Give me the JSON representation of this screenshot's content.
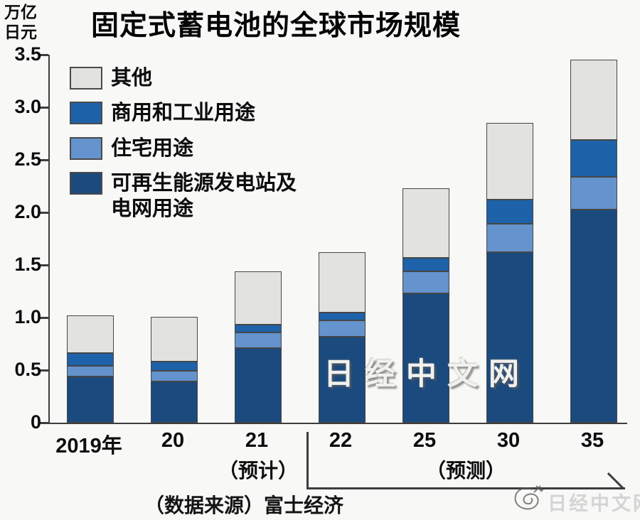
{
  "page_title": "固定式蓄电池的全球市场规模",
  "header": {
    "unit_line1": "万亿",
    "unit_line2": "日元",
    "title": "固定式蓄电池的全球市场规模"
  },
  "chart_data": {
    "type": "bar",
    "stacked": true,
    "title": "固定式蓄电池的全球市场规模",
    "ylabel": "万亿日元",
    "xlabel": "",
    "categories": [
      "2019年",
      "20",
      "21",
      "22",
      "25",
      "30",
      "35"
    ],
    "series": [
      {
        "name": "可再生能源发电站及电网用途",
        "color": "#1b4a7e",
        "values": [
          0.44,
          0.39,
          0.71,
          0.82,
          1.23,
          1.62,
          2.03
        ]
      },
      {
        "name": "住宅用途",
        "color": "#6493cd",
        "values": [
          0.1,
          0.1,
          0.15,
          0.15,
          0.21,
          0.27,
          0.31
        ]
      },
      {
        "name": "商用和工业用途",
        "color": "#1e62a9",
        "values": [
          0.12,
          0.09,
          0.07,
          0.08,
          0.13,
          0.23,
          0.35
        ]
      },
      {
        "name": "其他",
        "color": "#e2e2e1",
        "values": [
          0.36,
          0.43,
          0.51,
          0.57,
          0.66,
          0.73,
          0.76
        ]
      }
    ],
    "totals": [
      1.02,
      1.01,
      1.44,
      1.62,
      2.23,
      2.85,
      3.45
    ],
    "ylim": [
      0,
      3.5
    ],
    "yticks": [
      0,
      0.5,
      1.0,
      1.5,
      2.0,
      2.5,
      3.0,
      3.5
    ],
    "ytick_labels": [
      "0",
      "0.5",
      "1.0",
      "1.5",
      "2.0",
      "2.5",
      "3.0",
      "3.5"
    ],
    "grid": false,
    "legend_position": "top-left"
  },
  "legend": {
    "items": [
      {
        "label": "其他",
        "color": "#e2e2e1"
      },
      {
        "label": "商用和工业用途",
        "color": "#1e62a9"
      },
      {
        "label": "住宅用途",
        "color": "#6493cd"
      },
      {
        "label": "可再生能源发电站及",
        "label_line2": "电网用途",
        "color": "#1b4a7e"
      }
    ]
  },
  "annotations": {
    "estimate_label": "（预计）",
    "forecast_label": "（预测）",
    "source": "（数据来源）富士经济"
  },
  "watermark": {
    "center": "日经中文网",
    "bottom_right": "日经中文网"
  }
}
